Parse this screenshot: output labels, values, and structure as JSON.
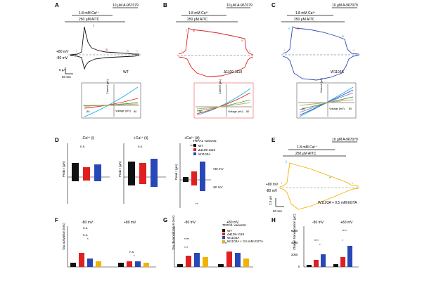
{
  "colors": {
    "wt": "#111111",
    "del": "#e02020",
    "w1103a": "#2848b8",
    "egta": "#f0b400",
    "orange": "#f08020",
    "green": "#3aa84a",
    "cyan": "#18b0e0",
    "purple": "#9a6ad0",
    "tan": "#c8a86a",
    "grey": "#9a9a9a",
    "box_red": "#f08080"
  },
  "panels": {
    "A": {
      "letter": "A",
      "inhibitor": "10 µM A-967079",
      "calcium": "1.8 mM Ca²⁺",
      "aitc": "250 µM AITC",
      "v_pos": "+80 mV",
      "v_neg": "-80 mV",
      "scale_y": "5 µA",
      "scale_x": "50 sec",
      "variant": "WT",
      "markers": [
        "i",
        "ii",
        "iii",
        "iv",
        "v"
      ],
      "iv_y_label": "Current (µA)",
      "iv_x_label": "Voltage (mV)",
      "iv_tick_min": "-80",
      "iv_tick_max": "80"
    },
    "B": {
      "letter": "B",
      "inhibitor": "10 µM A-967079",
      "calcium": "1.8 mM Ca²⁺",
      "aitc": "250 µM AITC",
      "variant": "Δ1109-1119",
      "markers": [
        "i",
        "ii",
        "iii",
        "iv",
        "v"
      ],
      "iv_y_label": "Current (µA)",
      "iv_x_label": "Voltage (mV)",
      "iv_tick_min": "-80",
      "iv_tick_max": "80"
    },
    "C": {
      "letter": "C",
      "inhibitor": "10 µM A-967079",
      "calcium": "1.8 mM Ca²⁺",
      "aitc": "250 µM AITC",
      "variant": "W1103A",
      "markers": [
        "i",
        "ii",
        "iii",
        "iv",
        "v"
      ],
      "iv_y_label": "Current (µA)",
      "iv_x_label": "Voltage (mV)",
      "iv_tick_min": "-80",
      "iv_tick_max": "80"
    },
    "D": {
      "letter": "D",
      "sub_titles": [
        "-Ca²⁺ (i)",
        "+Ca²⁺ (ii)",
        "+Ca²⁺ (iii)"
      ],
      "y_label": "Peak I (µA)",
      "ns": "n.s.",
      "stars3": "***",
      "stars1": "*",
      "stars2": "**",
      "plus80": "+80 mV",
      "minus80": "-80 mV",
      "legend_title": "TRPA1 variants:",
      "legend": [
        "WT",
        "Δ1109-1119",
        "W1103A"
      ]
    },
    "E": {
      "letter": "E",
      "inhibitor": "10 µM A-967079",
      "calcium": "1.8 mM Ca²⁺",
      "aitc": "250 µM AITC",
      "v_pos": "+80 mV",
      "v_neg": "-80 mV",
      "scale_y": "2.5 µA",
      "scale_x": "50 sec",
      "variant": "W1103A + 0.5 mM EGTA",
      "markers": [
        "i",
        "ii",
        "iv",
        "v"
      ]
    },
    "F": {
      "letter": "F",
      "neg": "-80 mV",
      "pos": "+80 mV",
      "y_label": "Tau activation (sec)",
      "ns": "n.s.",
      "stars1": "*"
    },
    "G": {
      "letter": "G",
      "neg": "-80 mV",
      "pos": "+80 mV",
      "y_label": "Tau desensitization (sec)",
      "ns": "n.s.",
      "stars4": "****",
      "stars3": "***",
      "stars1": "*",
      "legend_title": "TRPA1 variants:",
      "legend": [
        "WT",
        "Δ1109-1119",
        "W1103A",
        "W1103A + 0.5 mM EGTA"
      ]
    },
    "H": {
      "letter": "H",
      "neg": "-80 mV",
      "pos": "+80 mV",
      "y_label": "Charge translocation (µC)",
      "ticks": [
        "6000",
        "4000",
        "2000",
        "0"
      ],
      "stars4": "****",
      "stars1": "*"
    }
  }
}
